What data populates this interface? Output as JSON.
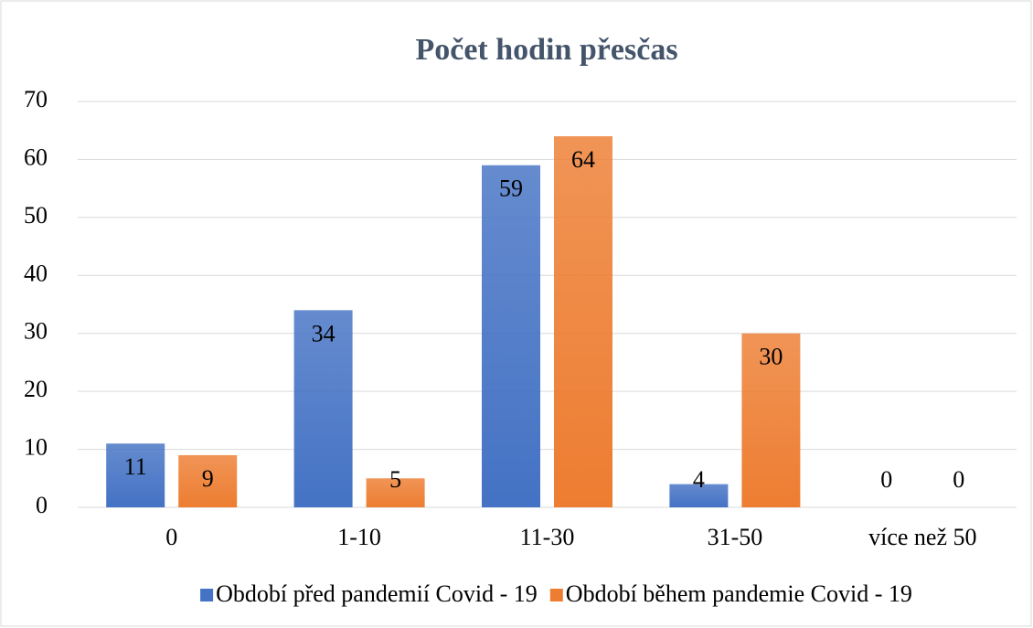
{
  "chart_data": {
    "type": "bar",
    "title": "Počet hodin přesčas",
    "categories": [
      "0",
      "1-10",
      "11-30",
      "31-50",
      "více než 50"
    ],
    "series": [
      {
        "name": "Období před pandemií Covid - 19",
        "color": "#4472c4",
        "values": [
          11,
          34,
          59,
          4,
          0
        ]
      },
      {
        "name": "Období během pandemie Covid - 19",
        "color": "#ed7d31",
        "values": [
          9,
          5,
          64,
          30,
          0
        ]
      }
    ],
    "ylim": [
      0,
      70
    ],
    "yticks": [
      0,
      10,
      20,
      30,
      40,
      50,
      60,
      70
    ],
    "grid": true,
    "legend": "bottom"
  }
}
